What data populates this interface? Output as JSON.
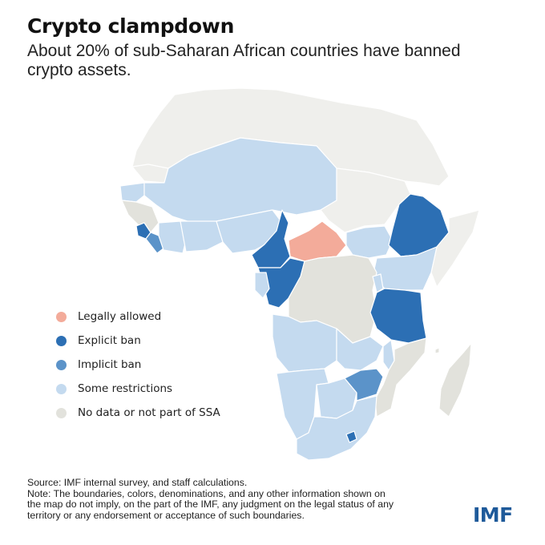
{
  "header": {
    "title": "Crypto clampdown",
    "subtitle": "About 20% of sub-Saharan African countries have banned crypto assets."
  },
  "colors": {
    "legally_allowed": "#f3ab9a",
    "explicit_ban": "#2c6fb4",
    "implicit_ban": "#5b93c9",
    "some_restrictions": "#c4daef",
    "no_data": "#e2e2dc",
    "not_ssa": "#efefec",
    "border": "#ffffff"
  },
  "legend": {
    "items": [
      {
        "label": "Legally allowed",
        "color": "#f3ab9a"
      },
      {
        "label": "Explicit ban",
        "color": "#2c6fb4"
      },
      {
        "label": "Implicit ban",
        "color": "#5b93c9"
      },
      {
        "label": "Some restrictions",
        "color": "#c4daef"
      },
      {
        "label": "No data or not part of SSA",
        "color": "#e2e2dc"
      }
    ]
  },
  "footer": {
    "source": "Source: IMF internal survey, and staff calculations.",
    "note_lines": [
      "Note: The boundaries, colors, denominations, and any other information shown on",
      "the map do not imply, on the part of the IMF, any judgment on the legal status of any",
      "territory or any endorsement or acceptance of such boundaries."
    ],
    "logo": "IMF"
  }
}
